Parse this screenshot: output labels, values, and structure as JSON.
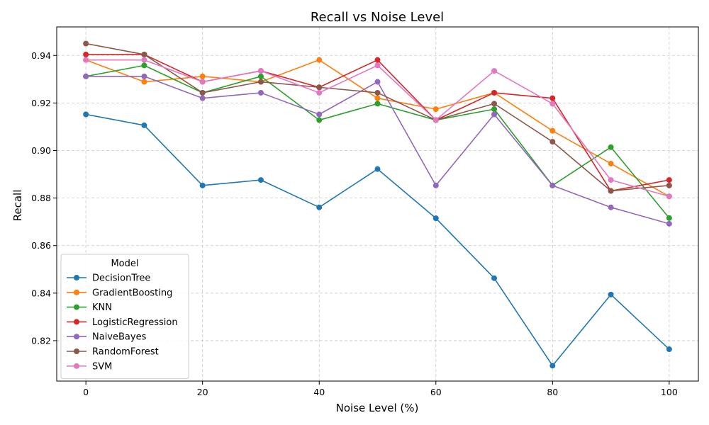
{
  "chart_data": {
    "type": "line",
    "title": "Recall vs Noise Level",
    "xlabel": "Noise Level (%)",
    "ylabel": "Recall",
    "xlim": [
      -5,
      105
    ],
    "ylim": [
      0.803,
      0.952
    ],
    "x": [
      0,
      10,
      20,
      30,
      40,
      50,
      60,
      70,
      80,
      90,
      100
    ],
    "x_ticks": [
      0,
      20,
      40,
      60,
      80,
      100
    ],
    "x_tick_labels": [
      "0",
      "20",
      "40",
      "60",
      "80",
      "100"
    ],
    "y_ticks": [
      0.82,
      0.84,
      0.86,
      0.88,
      0.9,
      0.92,
      0.94
    ],
    "y_tick_labels": [
      "0.82",
      "0.84",
      "0.86",
      "0.88",
      "0.90",
      "0.92",
      "0.94"
    ],
    "grid": true,
    "legend": {
      "title": "Model",
      "placement": "lower-left"
    },
    "series": [
      {
        "name": "DecisionTree",
        "color": "#1f77b4",
        "values": [
          0.9152,
          0.9106,
          0.8853,
          0.8876,
          0.8761,
          0.8922,
          0.8715,
          0.8463,
          0.8095,
          0.8394,
          0.8164
        ]
      },
      {
        "name": "GradientBoosting",
        "color": "#ff7f0e",
        "values": [
          0.9381,
          0.9289,
          0.9312,
          0.9289,
          0.9381,
          0.922,
          0.9174,
          0.9243,
          0.9083,
          0.8945,
          0.8807
        ]
      },
      {
        "name": "KNN",
        "color": "#2ca02c",
        "values": [
          0.9312,
          0.9358,
          0.9243,
          0.9312,
          0.9128,
          0.9197,
          0.9128,
          0.9174,
          0.8853,
          0.9014,
          0.8716
        ]
      },
      {
        "name": "LogisticRegression",
        "color": "#d62728",
        "values": [
          0.9404,
          0.9404,
          0.9289,
          0.9335,
          0.9266,
          0.9381,
          0.9128,
          0.9243,
          0.922,
          0.883,
          0.8876
        ]
      },
      {
        "name": "NaiveBayes",
        "color": "#9467bd",
        "values": [
          0.9312,
          0.9312,
          0.922,
          0.9243,
          0.9152,
          0.9289,
          0.8853,
          0.9152,
          0.8853,
          0.8761,
          0.8692
        ]
      },
      {
        "name": "RandomForest",
        "color": "#8c564b",
        "values": [
          0.945,
          0.9404,
          0.9243,
          0.9289,
          0.9266,
          0.9243,
          0.9128,
          0.9197,
          0.9037,
          0.883,
          0.8853
        ]
      },
      {
        "name": "SVM",
        "color": "#e377c2",
        "values": [
          0.9381,
          0.9381,
          0.9289,
          0.9335,
          0.9243,
          0.9358,
          0.9128,
          0.9335,
          0.9197,
          0.8876,
          0.8807
        ]
      }
    ]
  }
}
